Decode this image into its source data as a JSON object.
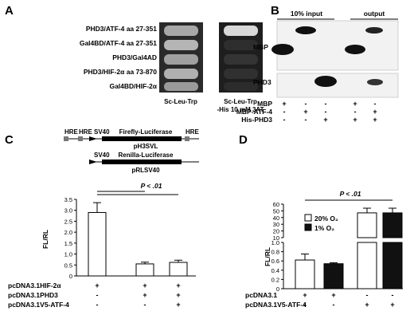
{
  "panels": {
    "A": {
      "letter": "A",
      "rows": [
        "PHD3/ATF-4 aa 27-351",
        "Gal4BD/ATF-4 aa 27-351",
        "PHD3/Gal4AD",
        "PHD3/HIF-2α aa 73-870",
        "Gal4BD/HIF-2α"
      ],
      "plate1_label": "Sc-Leu-Trp",
      "plate2_label_line1": "Sc-Leu-Trp",
      "plate2_label_line2": "-His 10 mM 3AT"
    },
    "B": {
      "letter": "B",
      "header_input": "10% input",
      "header_output": "output",
      "blot1_label": "MBP",
      "blot2_label": "PHD3",
      "rows": [
        {
          "label": "MBP",
          "signs": [
            "+",
            "-",
            "-",
            "+",
            "-"
          ]
        },
        {
          "label": "MBP-ATF-4",
          "signs": [
            "-",
            "+",
            "-",
            "-",
            "+"
          ]
        },
        {
          "label": "His-PHD3",
          "signs": [
            "-",
            "-",
            "+",
            "+",
            "+"
          ]
        }
      ]
    },
    "C": {
      "letter": "C",
      "construct1": {
        "hre1": "HRE",
        "hre2": "HRE",
        "promoter": "SV40",
        "gene": "Firefly-Luciferase",
        "hre3": "HRE",
        "name": "pH3SVL"
      },
      "construct2": {
        "promoter": "SV40",
        "gene": "Renilla-Luciferase",
        "name": "pRLSV40"
      },
      "pvalue": "P < .01",
      "rows": [
        {
          "label": "pcDNA3.1HIF-2α",
          "signs": [
            "+",
            "+",
            "+"
          ]
        },
        {
          "label": "pcDNA3.1PHD3",
          "signs": [
            "-",
            "+",
            "+"
          ]
        },
        {
          "label": "pcDNA3.1V5-ATF-4",
          "signs": [
            "-",
            "-",
            "+"
          ]
        }
      ]
    },
    "D": {
      "letter": "D",
      "pvalue": "P < .01",
      "legend": [
        "20% O₂",
        "1% O₂"
      ],
      "rows": [
        {
          "label": "pcDNA3.1",
          "signs": [
            "+",
            "+",
            "-",
            "-"
          ]
        },
        {
          "label": "pcDNA3.1V5-ATF-4",
          "signs": [
            "-",
            "-",
            "+",
            "+"
          ]
        }
      ]
    }
  },
  "chart_data": [
    {
      "type": "bar",
      "panel": "C",
      "ylabel": "FL/RL",
      "ylim": [
        0,
        3.5
      ],
      "yticks": [
        "0",
        "0.5",
        "1.0",
        "1.5",
        "2.0",
        "2.5",
        "3.0",
        "3.5"
      ],
      "values": [
        2.9,
        0.55,
        0.62
      ],
      "errors": [
        0.45,
        0.08,
        0.1
      ]
    },
    {
      "type": "bar",
      "panel": "D",
      "ylabel": "FL/RL",
      "lower_ticks": [
        "0",
        "0.2",
        "0.4",
        "0.6",
        "0.8",
        "1.0"
      ],
      "upper_ticks": [
        "10",
        "20",
        "30",
        "40",
        "50",
        "60"
      ],
      "series": [
        {
          "name": "20% O₂",
          "color": "#ffffff",
          "values": [
            0.62,
            null,
            47,
            null
          ],
          "errors": [
            0.13,
            null,
            7,
            null
          ]
        },
        {
          "name": "1% O₂",
          "color": "#111111",
          "values": [
            null,
            0.54,
            null,
            47
          ],
          "errors": [
            null,
            0.02,
            null,
            7
          ]
        }
      ]
    }
  ]
}
